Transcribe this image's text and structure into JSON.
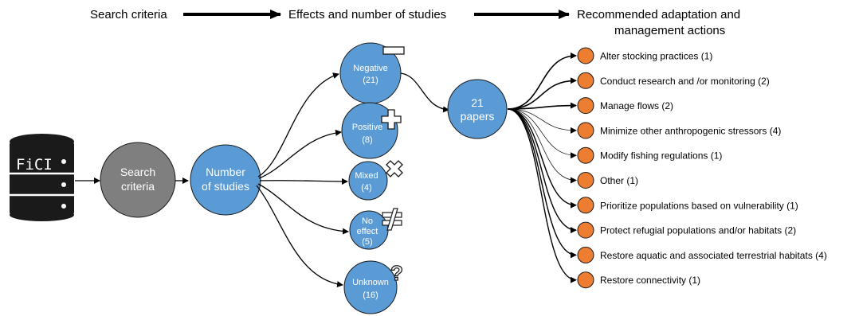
{
  "header": {
    "step1": "Search criteria",
    "step2": "Effects and number of studies",
    "step3_line1": "Recommended adaptation and",
    "step3_line2": "management actions"
  },
  "database": {
    "label": "FiCI"
  },
  "search_node": {
    "line1": "Search",
    "line2": "criteria"
  },
  "studies_node": {
    "line1": "Number",
    "line2": "of studies"
  },
  "effects": [
    {
      "label": "Negative",
      "count": "(21)",
      "symbol": "minus-icon"
    },
    {
      "label": "Positive",
      "count": "(8)",
      "symbol": "plus-icon"
    },
    {
      "label": "Mixed",
      "count": "(4)",
      "symbol": "cross-icon"
    },
    {
      "label": "No",
      "label2": "effect",
      "count": "(5)",
      "symbol": "not-equal-icon"
    },
    {
      "label": "Unknown",
      "count": "(16)",
      "symbol": "question-icon"
    }
  ],
  "papers_node": {
    "line1": "21",
    "line2": "papers"
  },
  "actions": [
    "Alter stocking practices (1)",
    "Conduct research and /or monitoring (2)",
    "Manage flows (2)",
    "Minimize other anthropogenic stressors (4)",
    "Modify fishing regulations (1)",
    "Other (1)",
    "Prioritize populations based on vulnerability (1)",
    "Protect refugial populations and/or habitats (2)",
    "Restore aquatic and associated terrestrial habitats (4)",
    "Restore connectivity (1)"
  ],
  "colors": {
    "blue": "#5b9bd5",
    "gray": "#7f7f7f",
    "orange": "#ed7d31",
    "dark": "#1a1a1a"
  }
}
